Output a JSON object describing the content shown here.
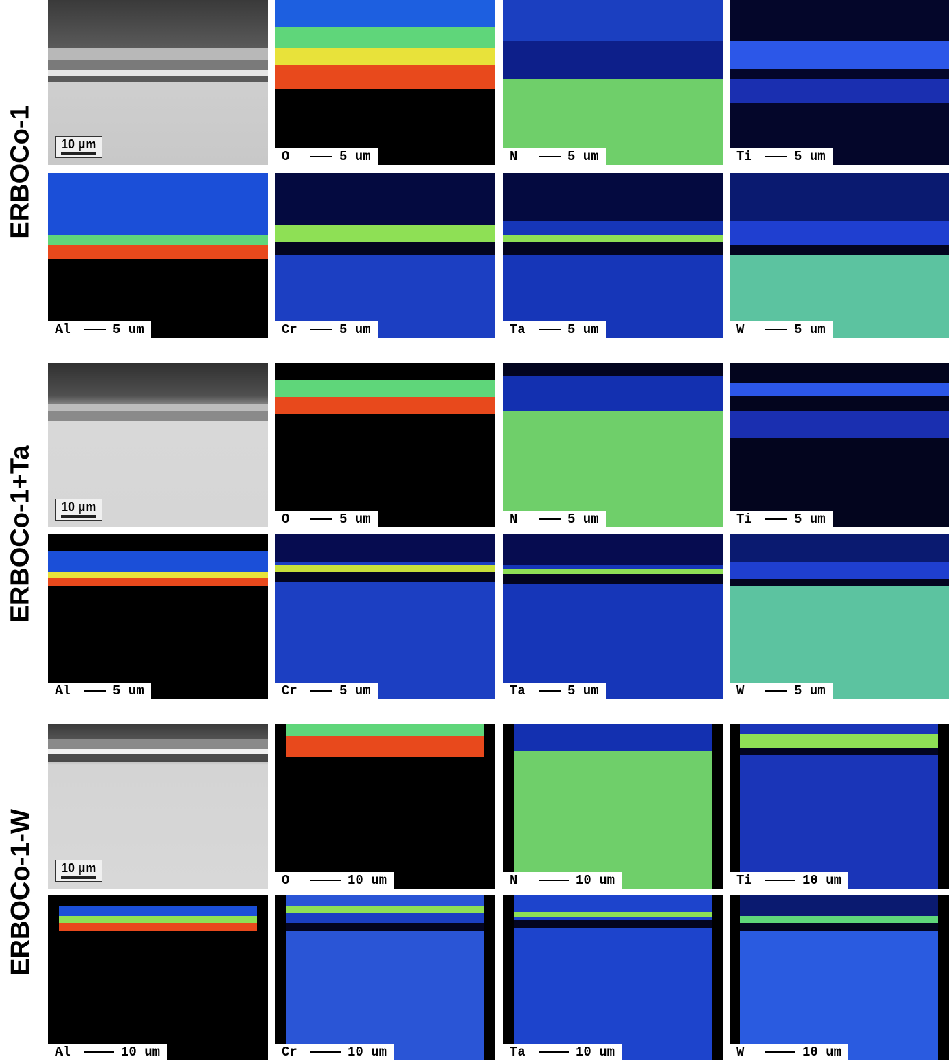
{
  "rows": [
    {
      "label": "ERBOCo-1",
      "sem_scale": "10 µm",
      "maps": [
        {
          "element": "O",
          "scale": "5 um"
        },
        {
          "element": "N",
          "scale": "5 um"
        },
        {
          "element": "Ti",
          "scale": "5 um"
        },
        {
          "element": "Al",
          "scale": "5 um"
        },
        {
          "element": "Cr",
          "scale": "5 um"
        },
        {
          "element": "Ta",
          "scale": "5 um"
        },
        {
          "element": "W",
          "scale": "5 um"
        }
      ]
    },
    {
      "label": "ERBOCo-1+Ta",
      "sem_scale": "10 µm",
      "maps": [
        {
          "element": "O",
          "scale": "5 um"
        },
        {
          "element": "N",
          "scale": "5 um"
        },
        {
          "element": "Ti",
          "scale": "5 um"
        },
        {
          "element": "Al",
          "scale": "5 um"
        },
        {
          "element": "Cr",
          "scale": "5 um"
        },
        {
          "element": "Ta",
          "scale": "5 um"
        },
        {
          "element": "W",
          "scale": "5 um"
        }
      ]
    },
    {
      "label": "ERBOCo-1-W",
      "sem_scale": "10 µm",
      "maps": [
        {
          "element": "O",
          "scale": "10 um"
        },
        {
          "element": "N",
          "scale": "10 um"
        },
        {
          "element": "Ti",
          "scale": "10 um"
        },
        {
          "element": "Al",
          "scale": "10 um"
        },
        {
          "element": "Cr",
          "scale": "10 um"
        },
        {
          "element": "Ta",
          "scale": "10 um"
        },
        {
          "element": "W",
          "scale": "10 um"
        }
      ]
    }
  ],
  "colormap": {
    "low": "#000000",
    "mid": "#1f4fe6",
    "high": "#e83a10",
    "accent": "#7fe05a"
  }
}
